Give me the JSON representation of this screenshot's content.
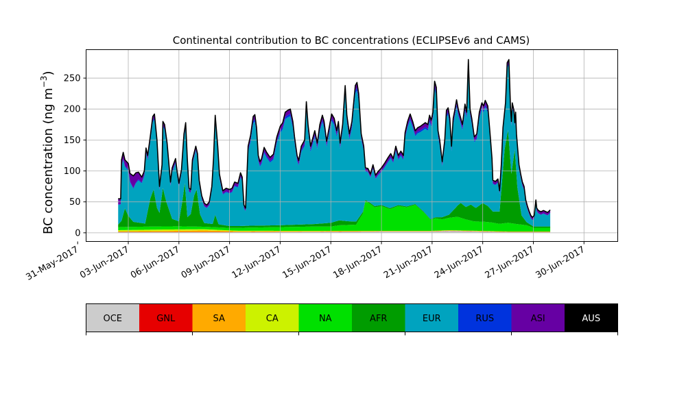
{
  "chart_data": {
    "type": "area",
    "title": "Continental contribution to BC concentrations (ECLIPSEv6 and CAMS)",
    "ylabel": "BC concentration (ng m",
    "ylabel_sup": "−3",
    "ylabel_close": ")",
    "xlabel": "",
    "ylim": [
      -14,
      296
    ],
    "yticks": [
      0,
      50,
      100,
      150,
      200,
      250
    ],
    "x_start_day": 31.5,
    "x_end_day": 63.0,
    "data_start_day": 33.4,
    "xtick_days": [
      31,
      34,
      37,
      40,
      43,
      46,
      49,
      52,
      55,
      58,
      61
    ],
    "xtick_labels": [
      "31-May-2017",
      "03-Jun-2017",
      "06-Jun-2017",
      "09-Jun-2017",
      "12-Jun-2017",
      "15-Jun-2017",
      "18-Jun-2017",
      "21-Jun-2017",
      "24-Jun-2017",
      "27-Jun-2017",
      "30-Jun-2017"
    ],
    "grid": true,
    "stack_order": [
      "OCE",
      "GNL",
      "SA",
      "CA",
      "NA",
      "AFR",
      "EUR",
      "RUS",
      "ASI",
      "AUS"
    ],
    "legend": [
      {
        "name": "OCE",
        "color": "#cccccc"
      },
      {
        "name": "GNL",
        "color": "#e60000"
      },
      {
        "name": "SA",
        "color": "#ffaa00"
      },
      {
        "name": "CA",
        "color": "#ccf200"
      },
      {
        "name": "NA",
        "color": "#00e000"
      },
      {
        "name": "AFR",
        "color": "#009c00"
      },
      {
        "name": "EUR",
        "color": "#00a3bf"
      },
      {
        "name": "RUS",
        "color": "#0033dd"
      },
      {
        "name": "ASI",
        "color": "#6600a3"
      },
      {
        "name": "AUS",
        "color": "#000000"
      }
    ],
    "total_series": [
      [
        33.4,
        55
      ],
      [
        33.55,
        55
      ],
      [
        33.6,
        118
      ],
      [
        33.7,
        130
      ],
      [
        33.8,
        118
      ],
      [
        34.0,
        112
      ],
      [
        34.1,
        96
      ],
      [
        34.3,
        92
      ],
      [
        34.45,
        97
      ],
      [
        34.6,
        98
      ],
      [
        34.8,
        90
      ],
      [
        34.95,
        100
      ],
      [
        35.05,
        137
      ],
      [
        35.15,
        125
      ],
      [
        35.3,
        155
      ],
      [
        35.45,
        188
      ],
      [
        35.55,
        192
      ],
      [
        35.7,
        150
      ],
      [
        35.85,
        75
      ],
      [
        36.0,
        110
      ],
      [
        36.05,
        180
      ],
      [
        36.15,
        175
      ],
      [
        36.3,
        145
      ],
      [
        36.5,
        82
      ],
      [
        36.6,
        105
      ],
      [
        36.8,
        120
      ],
      [
        36.9,
        98
      ],
      [
        37.0,
        80
      ],
      [
        37.15,
        102
      ],
      [
        37.3,
        160
      ],
      [
        37.4,
        178
      ],
      [
        37.5,
        118
      ],
      [
        37.6,
        72
      ],
      [
        37.7,
        70
      ],
      [
        37.8,
        118
      ],
      [
        38.0,
        140
      ],
      [
        38.1,
        128
      ],
      [
        38.2,
        85
      ],
      [
        38.35,
        60
      ],
      [
        38.5,
        48
      ],
      [
        38.65,
        45
      ],
      [
        38.8,
        50
      ],
      [
        38.95,
        75
      ],
      [
        39.05,
        120
      ],
      [
        39.15,
        190
      ],
      [
        39.3,
        140
      ],
      [
        39.4,
        95
      ],
      [
        39.6,
        68
      ],
      [
        39.8,
        72
      ],
      [
        40.0,
        70
      ],
      [
        40.15,
        72
      ],
      [
        40.3,
        82
      ],
      [
        40.5,
        80
      ],
      [
        40.65,
        97
      ],
      [
        40.75,
        90
      ],
      [
        40.85,
        45
      ],
      [
        40.95,
        40
      ],
      [
        41.1,
        140
      ],
      [
        41.25,
        158
      ],
      [
        41.4,
        188
      ],
      [
        41.5,
        191
      ],
      [
        41.6,
        170
      ],
      [
        41.7,
        125
      ],
      [
        41.8,
        115
      ],
      [
        41.9,
        120
      ],
      [
        42.05,
        138
      ],
      [
        42.2,
        130
      ],
      [
        42.4,
        122
      ],
      [
        42.6,
        127
      ],
      [
        42.8,
        155
      ],
      [
        43.0,
        172
      ],
      [
        43.15,
        178
      ],
      [
        43.3,
        195
      ],
      [
        43.45,
        198
      ],
      [
        43.6,
        200
      ],
      [
        43.75,
        180
      ],
      [
        43.85,
        155
      ],
      [
        44.0,
        125
      ],
      [
        44.1,
        117
      ],
      [
        44.25,
        140
      ],
      [
        44.35,
        145
      ],
      [
        44.45,
        150
      ],
      [
        44.55,
        212
      ],
      [
        44.65,
        175
      ],
      [
        44.8,
        140
      ],
      [
        44.95,
        155
      ],
      [
        45.05,
        165
      ],
      [
        45.2,
        145
      ],
      [
        45.35,
        175
      ],
      [
        45.5,
        190
      ],
      [
        45.6,
        180
      ],
      [
        45.75,
        148
      ],
      [
        45.9,
        170
      ],
      [
        46.05,
        192
      ],
      [
        46.2,
        185
      ],
      [
        46.35,
        165
      ],
      [
        46.45,
        180
      ],
      [
        46.55,
        145
      ],
      [
        46.7,
        175
      ],
      [
        46.85,
        238
      ],
      [
        46.95,
        190
      ],
      [
        47.1,
        160
      ],
      [
        47.25,
        180
      ],
      [
        47.45,
        238
      ],
      [
        47.55,
        243
      ],
      [
        47.65,
        225
      ],
      [
        47.8,
        160
      ],
      [
        47.95,
        140
      ],
      [
        48.05,
        105
      ],
      [
        48.2,
        104
      ],
      [
        48.35,
        95
      ],
      [
        48.5,
        110
      ],
      [
        48.65,
        93
      ],
      [
        48.8,
        99
      ],
      [
        49.0,
        105
      ],
      [
        49.2,
        113
      ],
      [
        49.4,
        122
      ],
      [
        49.55,
        128
      ],
      [
        49.7,
        120
      ],
      [
        49.85,
        140
      ],
      [
        50.0,
        125
      ],
      [
        50.15,
        132
      ],
      [
        50.3,
        125
      ],
      [
        50.4,
        162
      ],
      [
        50.55,
        180
      ],
      [
        50.7,
        192
      ],
      [
        50.85,
        180
      ],
      [
        51.0,
        165
      ],
      [
        51.15,
        170
      ],
      [
        51.3,
        172
      ],
      [
        51.45,
        175
      ],
      [
        51.6,
        178
      ],
      [
        51.75,
        175
      ],
      [
        51.85,
        190
      ],
      [
        51.95,
        182
      ],
      [
        52.05,
        195
      ],
      [
        52.15,
        245
      ],
      [
        52.25,
        235
      ],
      [
        52.35,
        165
      ],
      [
        52.45,
        150
      ],
      [
        52.6,
        115
      ],
      [
        52.75,
        150
      ],
      [
        52.85,
        198
      ],
      [
        52.95,
        202
      ],
      [
        53.05,
        185
      ],
      [
        53.15,
        140
      ],
      [
        53.25,
        185
      ],
      [
        53.35,
        199
      ],
      [
        53.45,
        215
      ],
      [
        53.55,
        200
      ],
      [
        53.7,
        185
      ],
      [
        53.8,
        175
      ],
      [
        53.95,
        208
      ],
      [
        54.05,
        195
      ],
      [
        54.15,
        280
      ],
      [
        54.25,
        200
      ],
      [
        54.35,
        185
      ],
      [
        54.5,
        155
      ],
      [
        54.65,
        160
      ],
      [
        54.8,
        195
      ],
      [
        54.95,
        210
      ],
      [
        55.05,
        205
      ],
      [
        55.15,
        214
      ],
      [
        55.3,
        205
      ],
      [
        55.45,
        155
      ],
      [
        55.55,
        120
      ],
      [
        55.6,
        85
      ],
      [
        55.75,
        83
      ],
      [
        55.9,
        87
      ],
      [
        56.0,
        68
      ],
      [
        56.1,
        110
      ],
      [
        56.2,
        170
      ],
      [
        56.35,
        210
      ],
      [
        56.45,
        275
      ],
      [
        56.55,
        280
      ],
      [
        56.65,
        200
      ],
      [
        56.7,
        180
      ],
      [
        56.75,
        210
      ],
      [
        56.85,
        198
      ],
      [
        56.9,
        178
      ],
      [
        56.95,
        195
      ],
      [
        57.0,
        160
      ],
      [
        57.15,
        110
      ],
      [
        57.25,
        95
      ],
      [
        57.35,
        82
      ],
      [
        57.45,
        75
      ],
      [
        57.55,
        53
      ],
      [
        57.65,
        43
      ],
      [
        57.75,
        35
      ],
      [
        57.85,
        28
      ],
      [
        57.95,
        25
      ],
      [
        58.05,
        28
      ],
      [
        58.15,
        53
      ],
      [
        58.2,
        40
      ],
      [
        58.3,
        36
      ],
      [
        58.45,
        34
      ],
      [
        58.6,
        36
      ],
      [
        58.75,
        34
      ],
      [
        58.85,
        33
      ],
      [
        59.0,
        37
      ]
    ],
    "layers": {
      "OCE": [
        [
          33.4,
          1
        ],
        [
          40.0,
          1
        ],
        [
          45.0,
          1.5
        ],
        [
          49.0,
          2
        ],
        [
          52.0,
          2
        ],
        [
          53.0,
          3
        ],
        [
          56.5,
          1
        ],
        [
          59.0,
          1
        ]
      ],
      "GNL": [
        [
          33.4,
          0.3
        ],
        [
          59.0,
          0.3
        ]
      ],
      "SA": [
        [
          33.4,
          1
        ],
        [
          36.0,
          1.5
        ],
        [
          38.5,
          2.5
        ],
        [
          40.5,
          1
        ],
        [
          45.0,
          0.7
        ],
        [
          49.0,
          0.4
        ],
        [
          56.5,
          0.4
        ],
        [
          59.0,
          0.4
        ]
      ],
      "CA": [
        [
          33.4,
          2
        ],
        [
          36.0,
          2.5
        ],
        [
          38.5,
          2
        ],
        [
          40.5,
          1
        ],
        [
          45.0,
          0.6
        ],
        [
          49.0,
          0.5
        ],
        [
          59.0,
          0.5
        ]
      ],
      "NA": [
        [
          33.4,
          5
        ],
        [
          35.0,
          5
        ],
        [
          37.0,
          5
        ],
        [
          38.5,
          4
        ],
        [
          40.0,
          4
        ],
        [
          41.0,
          5
        ],
        [
          43.0,
          6
        ],
        [
          45.0,
          7
        ],
        [
          46.0,
          7
        ],
        [
          46.5,
          9
        ],
        [
          47.5,
          10
        ],
        [
          47.9,
          28
        ],
        [
          48.05,
          48
        ],
        [
          48.3,
          44
        ],
        [
          48.6,
          38
        ],
        [
          49.0,
          40
        ],
        [
          49.5,
          35
        ],
        [
          50.0,
          40
        ],
        [
          50.5,
          38
        ],
        [
          51.0,
          42
        ],
        [
          51.5,
          30
        ],
        [
          51.9,
          18
        ],
        [
          52.2,
          20
        ],
        [
          52.6,
          18
        ],
        [
          53.0,
          20
        ],
        [
          53.5,
          22
        ],
        [
          54.0,
          18
        ],
        [
          54.5,
          15
        ],
        [
          55.0,
          15
        ],
        [
          55.5,
          14
        ],
        [
          56.0,
          12
        ],
        [
          56.5,
          14
        ],
        [
          57.0,
          12
        ],
        [
          57.6,
          10
        ],
        [
          58.0,
          6
        ],
        [
          59.0,
          6
        ]
      ],
      "AFR": [
        [
          33.4,
          4
        ],
        [
          33.6,
          10
        ],
        [
          33.8,
          30
        ],
        [
          34.0,
          18
        ],
        [
          34.3,
          8
        ],
        [
          35.0,
          5
        ],
        [
          35.3,
          45
        ],
        [
          35.5,
          60
        ],
        [
          35.7,
          30
        ],
        [
          35.85,
          22
        ],
        [
          36.05,
          62
        ],
        [
          36.25,
          40
        ],
        [
          36.6,
          12
        ],
        [
          37.0,
          8
        ],
        [
          37.2,
          40
        ],
        [
          37.35,
          70
        ],
        [
          37.5,
          15
        ],
        [
          37.7,
          20
        ],
        [
          37.9,
          50
        ],
        [
          38.05,
          60
        ],
        [
          38.25,
          20
        ],
        [
          38.5,
          6
        ],
        [
          39.0,
          5
        ],
        [
          39.15,
          20
        ],
        [
          39.35,
          5
        ],
        [
          40.0,
          3
        ],
        [
          43.0,
          3
        ],
        [
          45.0,
          4
        ],
        [
          46.0,
          6
        ],
        [
          46.5,
          8
        ],
        [
          47.0,
          6
        ],
        [
          47.5,
          5
        ],
        [
          48.0,
          2
        ],
        [
          52.0,
          1
        ],
        [
          53.0,
          5
        ],
        [
          53.4,
          15
        ],
        [
          53.7,
          24
        ],
        [
          54.0,
          20
        ],
        [
          54.3,
          26
        ],
        [
          54.6,
          22
        ],
        [
          55.0,
          30
        ],
        [
          55.3,
          26
        ],
        [
          55.6,
          18
        ],
        [
          56.0,
          20
        ],
        [
          56.3,
          120
        ],
        [
          56.5,
          150
        ],
        [
          56.7,
          80
        ],
        [
          56.9,
          120
        ],
        [
          57.05,
          60
        ],
        [
          57.3,
          15
        ],
        [
          57.6,
          5
        ],
        [
          58.0,
          2
        ],
        [
          59.0,
          2
        ]
      ],
      "EUR_frac": 0.96,
      "RUS_frac": 0.02,
      "ASI_frac": 0.02,
      "ASI_bumps": [
        [
          34.0,
          8
        ],
        [
          34.3,
          18
        ],
        [
          34.6,
          10
        ],
        [
          35.0,
          4
        ]
      ]
    }
  }
}
